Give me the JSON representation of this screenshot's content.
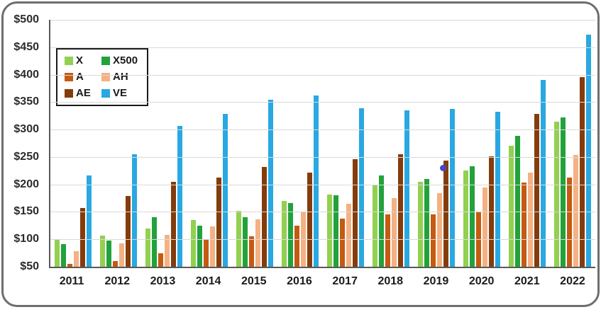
{
  "chart_data": {
    "type": "bar",
    "title": "",
    "xlabel": "",
    "ylabel": "",
    "ylim": [
      50,
      500
    ],
    "grid": true,
    "legend_position": "top-left-inside",
    "y_ticks": [
      "$500",
      "$450",
      "$400",
      "$350",
      "$300",
      "$250",
      "$200",
      "$150",
      "$100",
      "$50"
    ],
    "y_tick_values": [
      500,
      450,
      400,
      350,
      300,
      250,
      200,
      150,
      100,
      50
    ],
    "categories": [
      "2011",
      "2012",
      "2013",
      "2014",
      "2015",
      "2016",
      "2017",
      "2018",
      "2019",
      "2020",
      "2021",
      "2022"
    ],
    "series": [
      {
        "name": "X",
        "color": "#92D050",
        "values": [
          100,
          107,
          120,
          135,
          152,
          170,
          182,
          198,
          205,
          225,
          271,
          314
        ]
      },
      {
        "name": "X500",
        "color": "#22A23B",
        "values": [
          91,
          98,
          140,
          125,
          140,
          166,
          180,
          217,
          210,
          233,
          289,
          322
        ]
      },
      {
        "name": "A",
        "color": "#C55A11",
        "values": [
          55,
          60,
          75,
          100,
          105,
          125,
          138,
          145,
          145,
          150,
          204,
          212
        ]
      },
      {
        "name": "AH",
        "color": "#F4B183",
        "values": [
          79,
          92,
          108,
          123,
          137,
          150,
          165,
          175,
          184,
          195,
          222,
          254
        ]
      },
      {
        "name": "AE",
        "color": "#843C0C",
        "values": [
          157,
          179,
          205,
          212,
          232,
          221,
          246,
          255,
          243,
          251,
          329,
          396
        ]
      },
      {
        "name": "VE",
        "color": "#29A8E1",
        "values": [
          217,
          255,
          307,
          328,
          354,
          362,
          339,
          335,
          337,
          333,
          390,
          473
        ]
      }
    ],
    "annotation": {
      "type": "dot",
      "year": "2019",
      "series": "AE",
      "color": "#4345CE"
    }
  },
  "colors": {
    "gridline": "#d9d9d9",
    "axis": "#595959",
    "card_border": "#6e6e6e",
    "tick_text": "#2b2b2b"
  }
}
